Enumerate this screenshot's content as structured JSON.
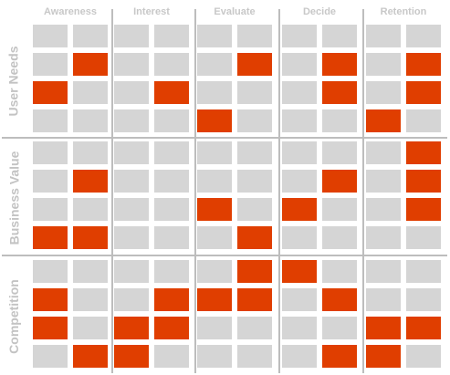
{
  "columns": [
    "Awareness",
    "Interest",
    "Evaluate",
    "Decide",
    "Retention"
  ],
  "groups": [
    {
      "label": "User Needs",
      "rows": [
        [
          0,
          0,
          0,
          0,
          0,
          0,
          0,
          0,
          0,
          0
        ],
        [
          0,
          1,
          0,
          0,
          0,
          1,
          0,
          1,
          0,
          1
        ],
        [
          1,
          0,
          0,
          1,
          0,
          0,
          0,
          1,
          0,
          1
        ],
        [
          0,
          0,
          0,
          0,
          1,
          0,
          0,
          0,
          1,
          0
        ]
      ]
    },
    {
      "label": "Business Value",
      "rows": [
        [
          0,
          0,
          0,
          0,
          0,
          0,
          0,
          0,
          0,
          1
        ],
        [
          0,
          1,
          0,
          0,
          0,
          0,
          0,
          1,
          0,
          1
        ],
        [
          0,
          0,
          0,
          0,
          1,
          0,
          1,
          0,
          0,
          1
        ],
        [
          1,
          1,
          0,
          0,
          0,
          1,
          0,
          0,
          0,
          0
        ]
      ]
    },
    {
      "label": "Competition",
      "rows": [
        [
          0,
          0,
          0,
          0,
          0,
          1,
          1,
          0,
          0,
          0
        ],
        [
          1,
          0,
          0,
          1,
          1,
          1,
          0,
          1,
          0,
          0
        ],
        [
          1,
          0,
          1,
          1,
          0,
          0,
          0,
          0,
          1,
          1
        ],
        [
          0,
          1,
          1,
          0,
          0,
          0,
          0,
          1,
          1,
          0
        ]
      ]
    }
  ],
  "colors": {
    "on": "#e03e00",
    "off": "#d5d5d5",
    "divider": "#bdbdbd",
    "label": "#c8c8c8"
  }
}
